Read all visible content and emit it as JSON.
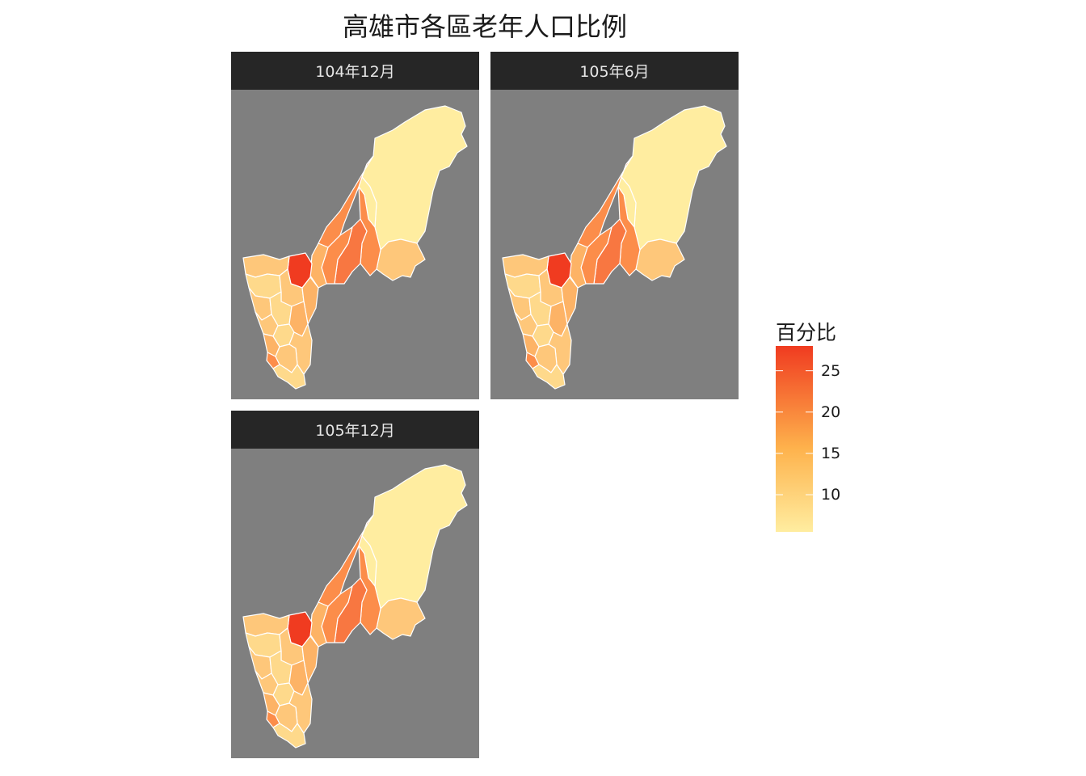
{
  "title": "高雄市各區老年人口比例",
  "panels": [
    {
      "label": "104年12月"
    },
    {
      "label": "105年6月"
    },
    {
      "label": "105年12月"
    }
  ],
  "legend": {
    "title": "百分比",
    "ticks": [
      "25",
      "20",
      "15",
      "10"
    ],
    "tick_values": [
      25,
      20,
      15,
      10
    ],
    "range": [
      5.5,
      28
    ],
    "color_low": "#ffeda0",
    "color_mid": "#feb24c",
    "color_high": "#f03b20"
  },
  "colors": {
    "panel_background": "#7f7f7f",
    "strip_background": "#262626",
    "strip_text": "#e6e6e6",
    "region_border": "#ffffff"
  }
}
